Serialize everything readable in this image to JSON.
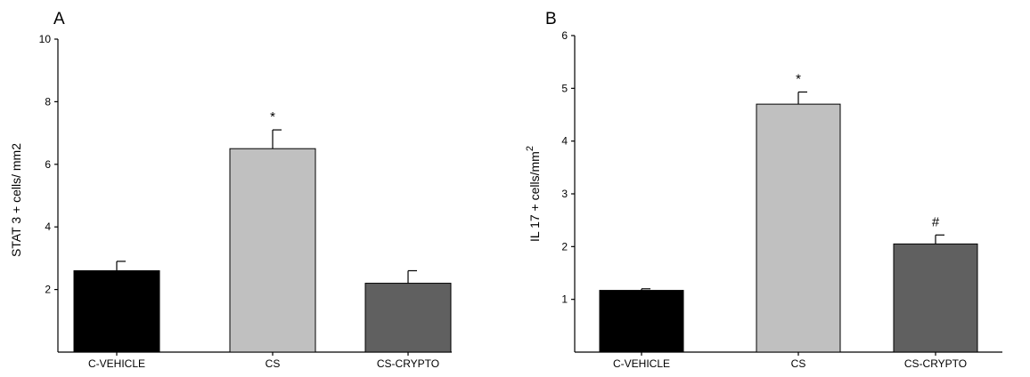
{
  "chart_data": [
    {
      "panel": "A",
      "type": "bar",
      "ylabel": "STAT 3 + cells/ mm2",
      "ylabel_sup": "",
      "categories": [
        "C-VEHICLE",
        "CS",
        "CS-CRYPTO"
      ],
      "values": [
        2.6,
        6.5,
        2.2
      ],
      "errors": [
        0.3,
        0.6,
        0.4
      ],
      "annotations": [
        "",
        "*",
        ""
      ],
      "colors": [
        "#000000",
        "#c0c0c0",
        "#606060"
      ],
      "ylim": [
        0,
        10
      ],
      "yticks": [
        2,
        4,
        6,
        8,
        10
      ],
      "grid": false,
      "legend": "none"
    },
    {
      "panel": "B",
      "type": "bar",
      "ylabel": "IL 17 + cells/mm",
      "ylabel_sup": "2",
      "categories": [
        "C-VEHICLE",
        "CS",
        "CS-CRYPTO"
      ],
      "values": [
        1.17,
        4.7,
        2.05
      ],
      "errors": [
        0.03,
        0.23,
        0.17
      ],
      "annotations": [
        "",
        "*",
        "#"
      ],
      "colors": [
        "#000000",
        "#c0c0c0",
        "#606060"
      ],
      "ylim": [
        0,
        6
      ],
      "yticks": [
        1,
        2,
        3,
        4,
        5,
        6
      ],
      "grid": false,
      "legend": "none"
    }
  ]
}
